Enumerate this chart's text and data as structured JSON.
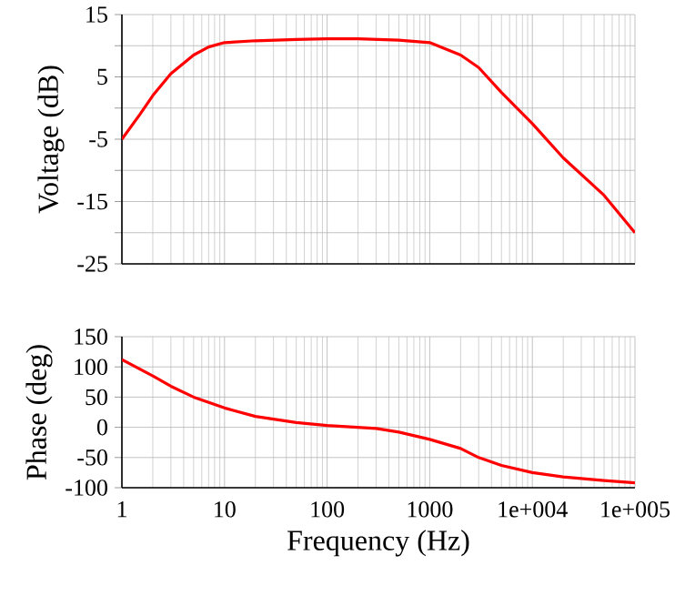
{
  "chart_data": [
    {
      "type": "line",
      "ylabel": "Voltage (dB)",
      "log": "x",
      "grid": true,
      "marker": "none",
      "line_style": "solid",
      "tick_labels": "y",
      "xlim": [
        1,
        100000
      ],
      "xticks": [
        1,
        10,
        100,
        1000,
        10000,
        100000
      ],
      "ylim": [
        -25,
        15
      ],
      "yticks": [
        -25,
        {
          "value": -20,
          "label": null
        },
        -15,
        {
          "value": -10,
          "label": null
        },
        -5,
        {
          "value": 0,
          "label": null
        },
        5,
        {
          "value": 10,
          "label": null
        },
        15
      ],
      "series": [
        {
          "color": "#ff0000",
          "x": [
            1,
            1.5,
            2,
            3,
            5,
            7,
            10,
            20,
            50,
            100,
            200,
            500,
            1000,
            2000,
            3000,
            5000,
            10000,
            20000,
            50000,
            100000
          ],
          "values": [
            -5,
            -1,
            2,
            5.5,
            8.5,
            9.8,
            10.5,
            10.8,
            11,
            11.1,
            11.1,
            10.9,
            10.5,
            8.5,
            6.5,
            2.5,
            -2.5,
            -8,
            -14,
            -20
          ]
        }
      ]
    },
    {
      "type": "line",
      "xlabel": "Frequency (Hz)",
      "ylabel": "Phase (deg)",
      "log": "x",
      "grid": true,
      "marker": "none",
      "line_style": "solid",
      "xlim": [
        1,
        100000
      ],
      "xticks": [
        1,
        10,
        100,
        1000,
        {
          "value": 10000,
          "label": "1e+004"
        },
        {
          "value": 100000,
          "label": "1e+005"
        }
      ],
      "ylim": [
        -100,
        150
      ],
      "yticks": [
        -100,
        -50,
        0,
        50,
        100,
        150
      ],
      "series": [
        {
          "color": "#ff0000",
          "x": [
            1,
            2,
            3,
            5,
            10,
            20,
            50,
            100,
            300,
            500,
            1000,
            2000,
            3000,
            5000,
            10000,
            20000,
            50000,
            100000
          ],
          "values": [
            112,
            85,
            68,
            50,
            32,
            18,
            8,
            3,
            -2,
            -8,
            -20,
            -35,
            -50,
            -63,
            -75,
            -82,
            -88,
            -92
          ]
        }
      ]
    }
  ]
}
